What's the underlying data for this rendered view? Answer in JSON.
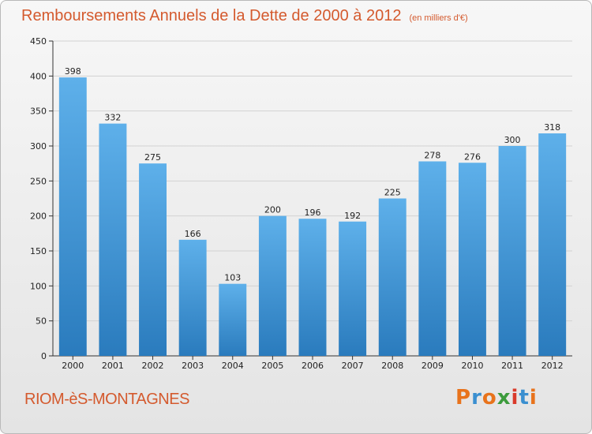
{
  "header": {
    "title": "Remboursements Annuels de la Dette de 2000 à 2012",
    "subtitle": "(en milliers d'€)"
  },
  "footer": {
    "commune": "RIOM-èS-MONTAGNES",
    "logo_text": "Proxiti"
  },
  "colors": {
    "title": "#d45a2e",
    "bar_top": "#5eb0ea",
    "bar_bottom": "#2a7bbd",
    "logo_letters": [
      "#e8731c",
      "#3a8fd0",
      "#e8731c",
      "#3c9b3c",
      "#d93a2b",
      "#3a8fd0",
      "#e8731c"
    ]
  },
  "chart_data": {
    "type": "bar",
    "categories": [
      "2000",
      "2001",
      "2002",
      "2003",
      "2004",
      "2005",
      "2006",
      "2007",
      "2008",
      "2009",
      "2010",
      "2011",
      "2012"
    ],
    "values": [
      398,
      332,
      275,
      166,
      103,
      200,
      196,
      192,
      225,
      278,
      276,
      300,
      318
    ],
    "ylim": [
      0,
      450
    ],
    "yticks": [
      0,
      50,
      100,
      150,
      200,
      250,
      300,
      350,
      400,
      450
    ],
    "grid": true,
    "xlabel": "",
    "ylabel": ""
  }
}
